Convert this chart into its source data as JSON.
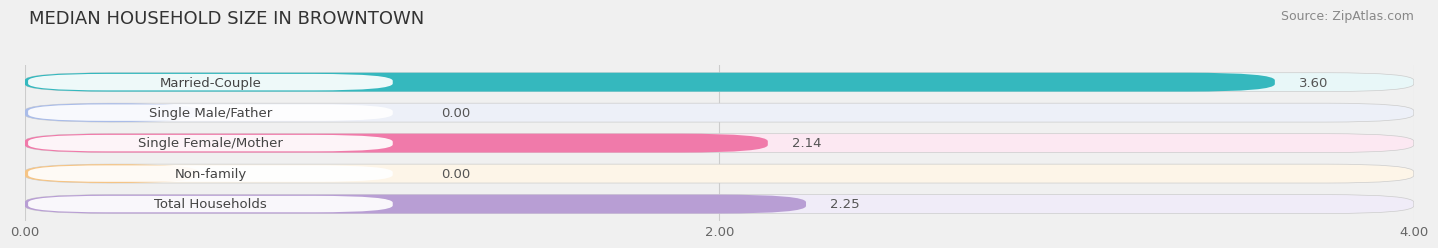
{
  "title": "MEDIAN HOUSEHOLD SIZE IN BROWNTOWN",
  "source": "Source: ZipAtlas.com",
  "categories": [
    "Married-Couple",
    "Single Male/Father",
    "Single Female/Mother",
    "Non-family",
    "Total Households"
  ],
  "values": [
    3.6,
    0.0,
    2.14,
    0.0,
    2.25
  ],
  "bar_colors": [
    "#35b8be",
    "#aabce8",
    "#f07aaa",
    "#f5c485",
    "#b89ed4"
  ],
  "bar_bg_colors": [
    "#e8f7f8",
    "#edf0f8",
    "#fce8f2",
    "#fdf5e8",
    "#f0ecf8"
  ],
  "label_bg_color": "#ffffff",
  "value_labels": [
    "3.60",
    "0.00",
    "2.14",
    "0.00",
    "2.25"
  ],
  "xlim": [
    0,
    4.0
  ],
  "xticks": [
    0.0,
    2.0,
    4.0
  ],
  "xtick_labels": [
    "0.00",
    "2.00",
    "4.00"
  ],
  "title_fontsize": 13,
  "label_fontsize": 9.5,
  "value_fontsize": 9.5,
  "source_fontsize": 9,
  "background_color": "#f0f0f0",
  "bar_row_bg": "#e8e8e8"
}
